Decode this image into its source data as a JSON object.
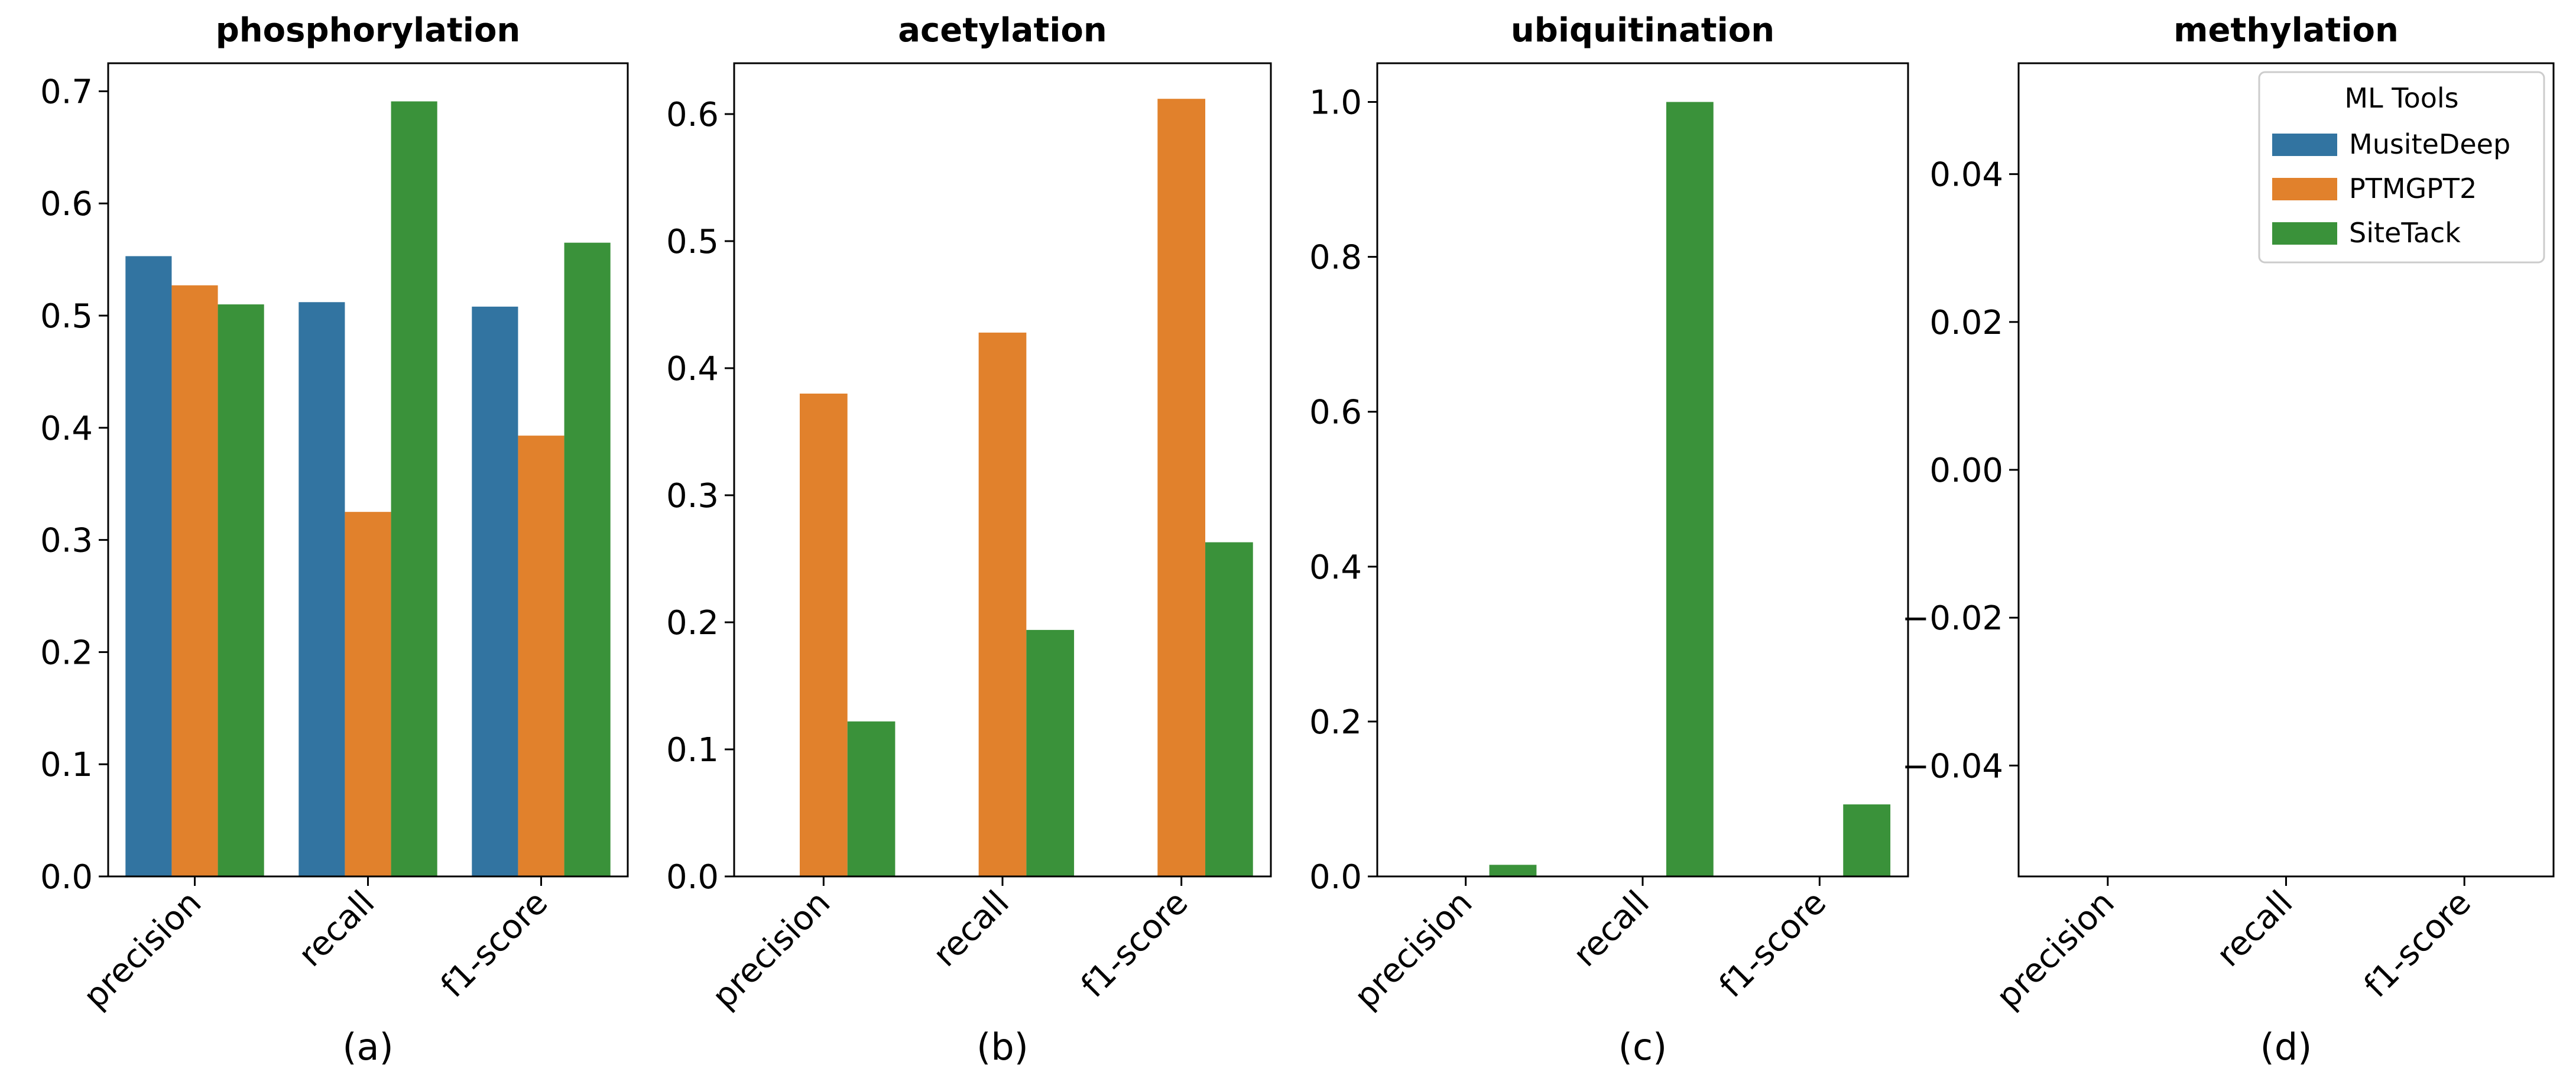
{
  "legend": {
    "title": "ML Tools",
    "entries": [
      {
        "name": "MusiteDeep",
        "color": "#3274a1"
      },
      {
        "name": "PTMGPT2",
        "color": "#e1812c"
      },
      {
        "name": "SiteTack",
        "color": "#3a923a"
      }
    ]
  },
  "chart_data": [
    {
      "type": "bar",
      "title": "phosphorylation",
      "sublabel": "(a)",
      "categories": [
        "precision",
        "recall",
        "f1-score"
      ],
      "ylim": [
        0,
        0.725
      ],
      "yticks": [
        0.0,
        0.1,
        0.2,
        0.3,
        0.4,
        0.5,
        0.6,
        0.7
      ],
      "ytick_labels": [
        "0.0",
        "0.1",
        "0.2",
        "0.3",
        "0.4",
        "0.5",
        "0.6",
        "0.7"
      ],
      "series": [
        {
          "name": "MusiteDeep",
          "values": [
            0.553,
            0.512,
            0.508
          ]
        },
        {
          "name": "PTMGPT2",
          "values": [
            0.527,
            0.325,
            0.393
          ]
        },
        {
          "name": "SiteTack",
          "values": [
            0.51,
            0.691,
            0.565
          ]
        }
      ]
    },
    {
      "type": "bar",
      "title": "acetylation",
      "sublabel": "(b)",
      "categories": [
        "precision",
        "recall",
        "f1-score"
      ],
      "ylim": [
        0,
        0.64
      ],
      "yticks": [
        0.0,
        0.1,
        0.2,
        0.3,
        0.4,
        0.5,
        0.6
      ],
      "ytick_labels": [
        "0.0",
        "0.1",
        "0.2",
        "0.3",
        "0.4",
        "0.5",
        "0.6"
      ],
      "series": [
        {
          "name": "MusiteDeep",
          "values": [
            0,
            0,
            0
          ]
        },
        {
          "name": "PTMGPT2",
          "values": [
            0.38,
            0.428,
            0.612
          ]
        },
        {
          "name": "SiteTack",
          "values": [
            0.122,
            0.194,
            0.263
          ]
        }
      ]
    },
    {
      "type": "bar",
      "title": "ubiquitination",
      "sublabel": "(c)",
      "categories": [
        "precision",
        "recall",
        "f1-score"
      ],
      "ylim": [
        0,
        1.05
      ],
      "yticks": [
        0.0,
        0.2,
        0.4,
        0.6,
        0.8,
        1.0
      ],
      "ytick_labels": [
        "0.0",
        "0.2",
        "0.4",
        "0.6",
        "0.8",
        "1.0"
      ],
      "series": [
        {
          "name": "MusiteDeep",
          "values": [
            0,
            0,
            0
          ]
        },
        {
          "name": "PTMGPT2",
          "values": [
            0,
            0,
            0
          ]
        },
        {
          "name": "SiteTack",
          "values": [
            0.015,
            1.0,
            0.093
          ]
        }
      ]
    },
    {
      "type": "bar",
      "title": "methylation",
      "sublabel": "(d)",
      "categories": [
        "precision",
        "recall",
        "f1-score"
      ],
      "ylim": [
        -0.055,
        0.055
      ],
      "yticks": [
        -0.04,
        -0.02,
        0.0,
        0.02,
        0.04
      ],
      "ytick_labels": [
        "−0.04",
        "−0.02",
        "0.00",
        "0.02",
        "0.04"
      ],
      "series": [
        {
          "name": "MusiteDeep",
          "values": [
            0,
            0,
            0
          ]
        },
        {
          "name": "PTMGPT2",
          "values": [
            0,
            0,
            0
          ]
        },
        {
          "name": "SiteTack",
          "values": [
            0,
            0,
            0
          ]
        }
      ]
    }
  ]
}
